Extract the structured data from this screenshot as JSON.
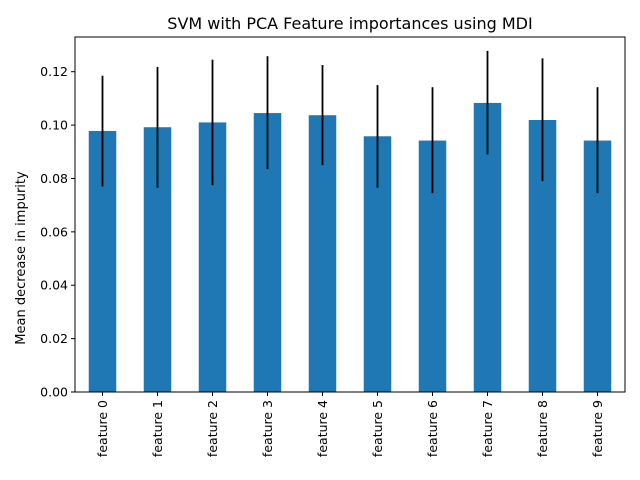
{
  "chart_data": {
    "type": "bar",
    "title": "SVM with PCA Feature importances using MDI",
    "xlabel": "",
    "ylabel": "Mean decrease in impurity",
    "categories": [
      "feature 0",
      "feature 1",
      "feature 2",
      "feature 3",
      "feature 4",
      "feature 5",
      "feature 6",
      "feature 7",
      "feature 8",
      "feature 9"
    ],
    "values": [
      0.0978,
      0.0992,
      0.101,
      0.1045,
      0.1037,
      0.0958,
      0.0942,
      0.1083,
      0.1019,
      0.0942
    ],
    "error_low": [
      0.077,
      0.0765,
      0.0775,
      0.0835,
      0.085,
      0.0765,
      0.0745,
      0.089,
      0.079,
      0.0745
    ],
    "error_high": [
      0.1185,
      0.1218,
      0.1245,
      0.1258,
      0.1225,
      0.115,
      0.1142,
      0.1278,
      0.125,
      0.1142
    ],
    "ylim": [
      0,
      0.133
    ],
    "yticks": [
      0.0,
      0.02,
      0.04,
      0.06,
      0.08,
      0.1,
      0.12
    ],
    "ytick_labels": [
      "0.00",
      "0.02",
      "0.04",
      "0.06",
      "0.08",
      "0.10",
      "0.12"
    ],
    "bar_color": "#1f77b4",
    "error_color": "#000000",
    "grid": false,
    "legend": "none"
  }
}
